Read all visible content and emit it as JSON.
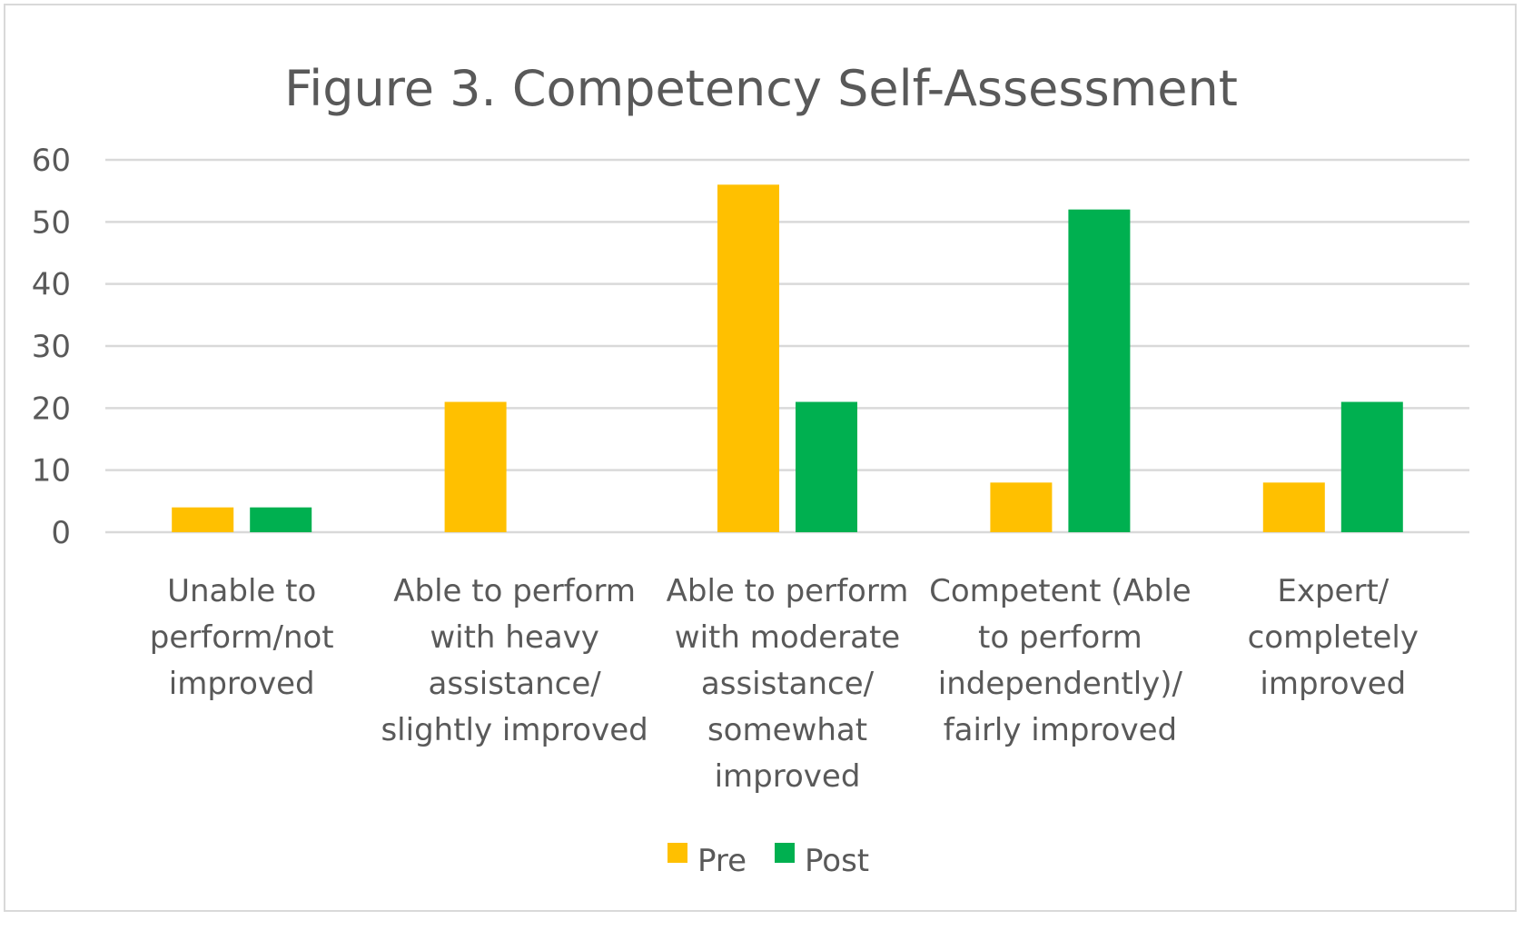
{
  "chart_data": {
    "type": "bar",
    "title": "Figure 3. Competency Self-Assessment",
    "xlabel": "",
    "ylabel": "",
    "ylim": [
      0,
      60
    ],
    "yticks": [
      0,
      10,
      20,
      30,
      40,
      50,
      60
    ],
    "grid": true,
    "legend_position": "bottom",
    "categories": [
      [
        "Unable to",
        "perform/not",
        "improved"
      ],
      [
        "Able to perform",
        "with heavy",
        "assistance/",
        "slightly improved"
      ],
      [
        "Able to perform",
        "with moderate",
        "assistance/",
        "somewhat",
        "improved"
      ],
      [
        "Competent (Able",
        "to perform",
        "independently)/",
        "fairly improved"
      ],
      [
        "Expert/",
        "completely",
        "improved"
      ]
    ],
    "series": [
      {
        "name": "Pre",
        "color": "#FFC000",
        "values": [
          4,
          21,
          56,
          8,
          8
        ]
      },
      {
        "name": "Post",
        "color": "#00B050",
        "values": [
          4,
          0,
          21,
          52,
          21
        ]
      }
    ]
  }
}
